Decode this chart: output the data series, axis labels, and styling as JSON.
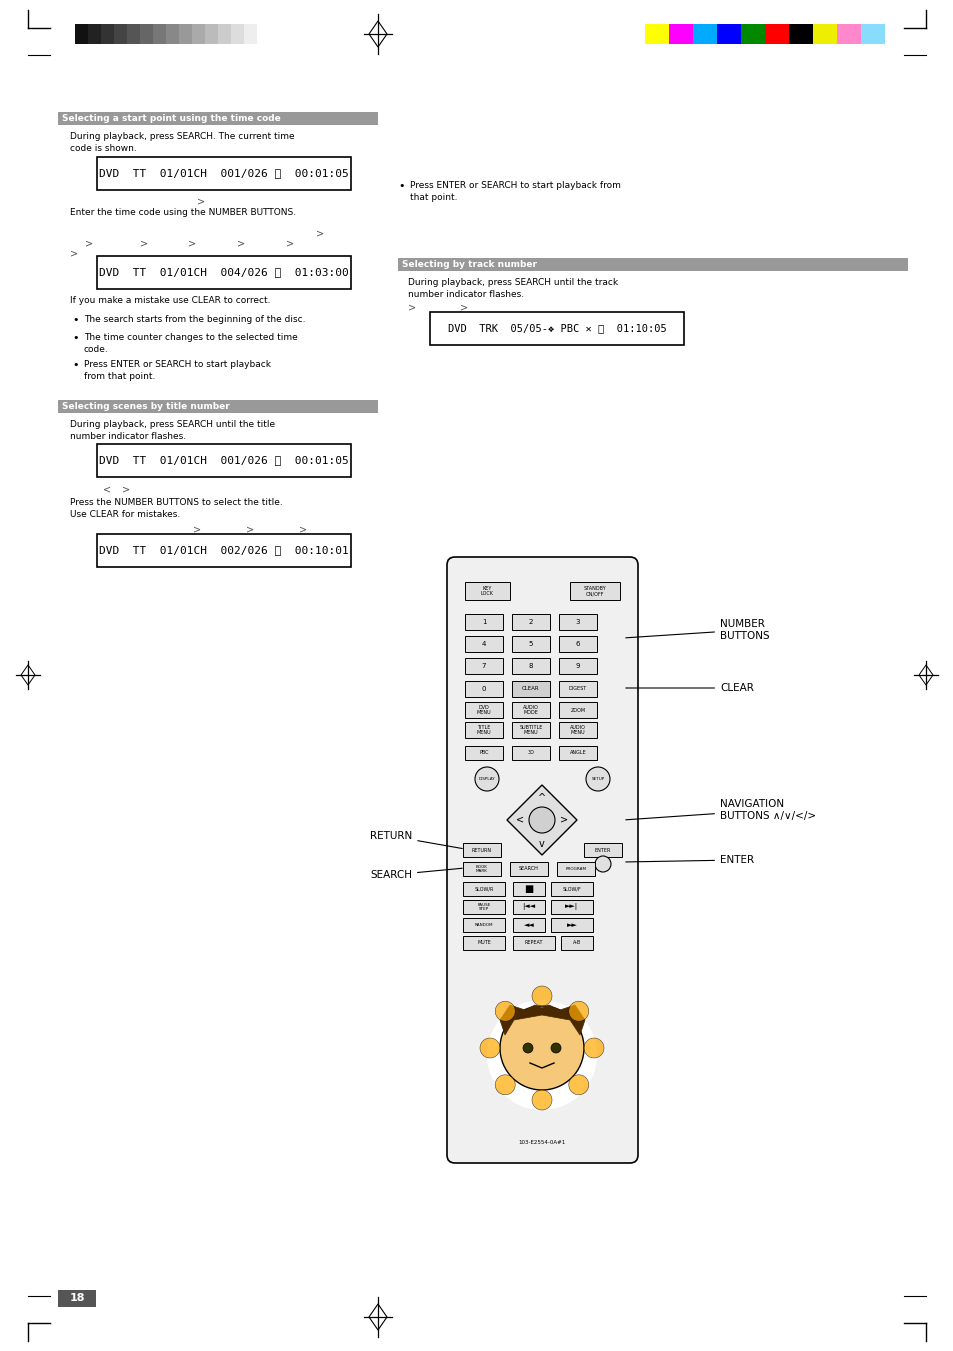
{
  "page_bg": "#ffffff",
  "gray_bar_color": "#999999",
  "text_color": "#000000",
  "section1_header": "Selecting a start point using the time code",
  "section2_header": "Selecting scenes by title number",
  "section3_header": "Selecting by track number",
  "box1_text": "DVD  TT  01/01CH  001/026 ⌛  00:01:05",
  "box2_text": "DVD  TT  01/01CH  004/026 ⌛  01:03:00",
  "box3_text": "DVD  TT  01/01CH  001/026 ⌛  00:01:05",
  "box4_text": "DVD  TT  01/01CH  002/026 ⌛  00:10:01",
  "box5_text": "DVD  TRK  05/05-❖ PBC ✕ ⌛  01:10:05",
  "page_num": "18",
  "color_bars_left": [
    "#111111",
    "#222222",
    "#333333",
    "#444444",
    "#555555",
    "#666666",
    "#777777",
    "#888888",
    "#999999",
    "#aaaaaa",
    "#bbbbbb",
    "#cccccc",
    "#dddddd",
    "#eeeeee",
    "#ffffff"
  ],
  "color_bars_right": [
    "#ffff00",
    "#ff00ff",
    "#00aaff",
    "#0000ff",
    "#008800",
    "#ff0000",
    "#000000",
    "#eeee00",
    "#ff88cc",
    "#88ddff"
  ],
  "label_number_buttons": "NUMBER\nBUTTONS",
  "label_clear": "CLEAR",
  "label_navigation": "NAVIGATION\nBUTTONS ∧/∨/</>",
  "label_enter": "ENTER",
  "label_return": "RETURN",
  "label_search": "SEARCH"
}
